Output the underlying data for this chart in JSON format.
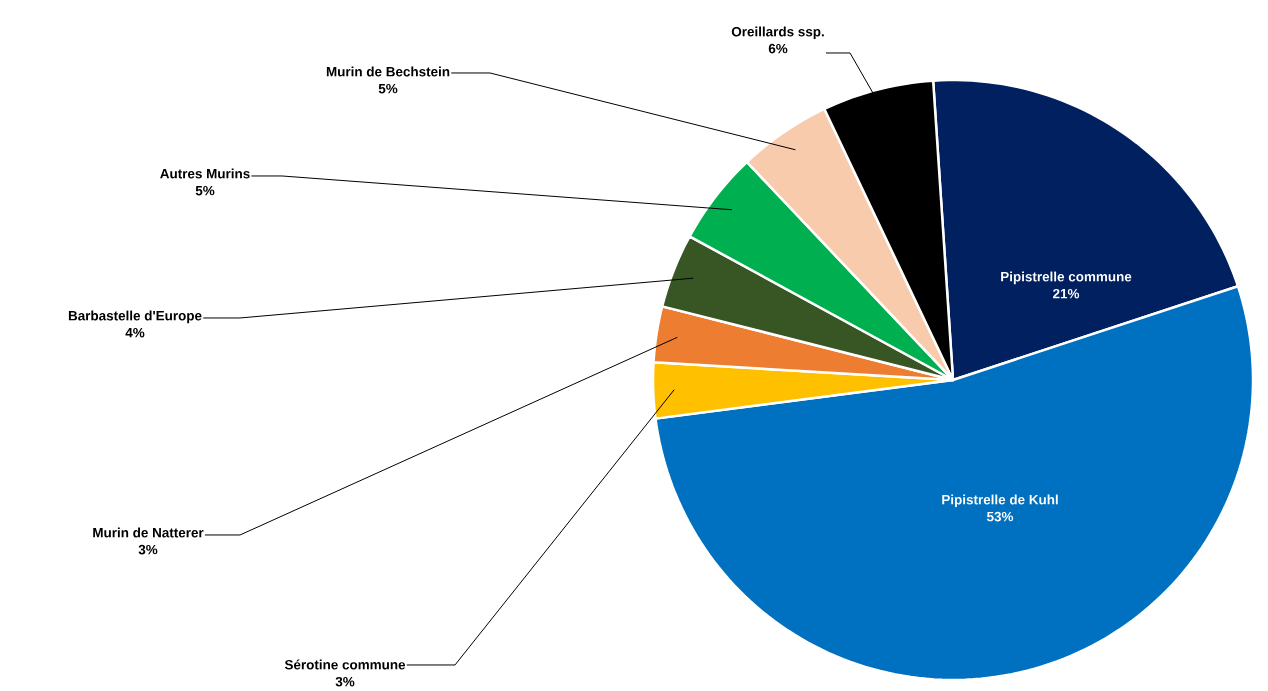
{
  "chart_data": {
    "type": "pie",
    "categories": [
      "Pipistrelle commune",
      "Pipistrelle de Kuhl",
      "Sérotine commune",
      "Murin de Natterer",
      "Barbastelle d'Europe",
      "Autres Murins",
      "Murin de Bechstein",
      "Oreillards ssp."
    ],
    "values": [
      21,
      53,
      3,
      3,
      4,
      5,
      5,
      6
    ],
    "value_labels": [
      "21%",
      "53%",
      "3%",
      "3%",
      "4%",
      "5%",
      "5%",
      "6%"
    ],
    "colors": [
      "#002060",
      "#0070c0",
      "#ffc000",
      "#ed7d31",
      "#375623",
      "#00b050",
      "#f8cbad",
      "#000000"
    ]
  }
}
